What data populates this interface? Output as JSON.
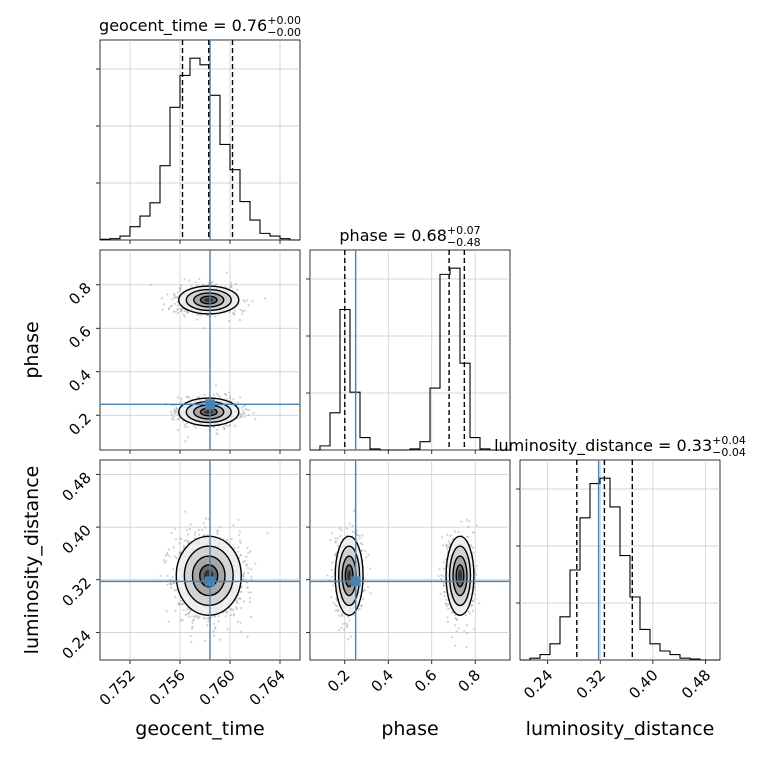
{
  "chart_data": {
    "type": "corner",
    "parameters": [
      {
        "name": "geocent_time",
        "axis_label": "geocent_time",
        "truth": 0.7584,
        "range": [
          0.7496,
          0.7656
        ],
        "ticks": [
          0.752,
          0.756,
          0.76,
          0.764
        ],
        "tick_labels": [
          "0.752",
          "0.756",
          "0.760",
          "0.764"
        ],
        "title": {
          "prefix": "geocent_time = 0.76",
          "upper": "+0.00",
          "lower": "−0.00"
        },
        "quantiles": [
          0.7562,
          0.7583,
          0.7602
        ],
        "hist": {
          "edges_start": 0.7496,
          "bin_width": 0.0008,
          "counts": [
            0.5,
            1,
            3,
            10,
            18,
            28,
            56,
            100,
            124,
            137,
            132,
            109,
            72,
            53,
            29,
            15,
            5,
            3,
            1,
            0
          ]
        }
      },
      {
        "name": "phase",
        "axis_label": "phase",
        "truth": 0.25,
        "range": [
          0.04,
          0.96
        ],
        "ticks": [
          0.2,
          0.4,
          0.6,
          0.8
        ],
        "tick_labels": [
          "0.2",
          "0.4",
          "0.6",
          "0.8"
        ],
        "title": {
          "prefix": "phase = 0.68",
          "upper": "+0.07",
          "lower": "−0.48"
        },
        "quantiles": [
          0.2,
          0.68,
          0.75
        ],
        "hist": {
          "edges_start": 0.04,
          "bin_width": 0.046,
          "counts": [
            0,
            2,
            18,
            68,
            28,
            6,
            0.5,
            0,
            0,
            0,
            0.5,
            4,
            30,
            85,
            88,
            42,
            6,
            0.5,
            0,
            0
          ]
        }
      },
      {
        "name": "luminosity_distance",
        "axis_label": "luminosity_distance",
        "truth": 0.3175,
        "range": [
          0.198,
          0.502
        ],
        "ticks": [
          0.24,
          0.32,
          0.4,
          0.48
        ],
        "tick_labels": [
          "0.24",
          "0.32",
          "0.40",
          "0.48"
        ],
        "title": {
          "prefix": "luminosity_distance = 0.33",
          "upper": "+0.04",
          "lower": "−0.04"
        },
        "quantiles": [
          0.2843,
          0.3263,
          0.3687
        ],
        "hist": {
          "edges_start": 0.198,
          "bin_width": 0.0152,
          "counts": [
            0,
            1,
            3,
            9,
            24,
            50,
            79,
            98,
            101,
            85,
            58,
            35,
            17,
            9,
            5,
            3,
            1,
            0.5,
            0,
            0
          ]
        }
      }
    ],
    "truth_color": "#4682b4",
    "contour_color": "#000000",
    "grid": true,
    "title": "",
    "xlabel_bottom": [
      "geocent_time",
      "phase",
      "luminosity_distance"
    ],
    "ylabel_left": [
      "phase",
      "luminosity_distance"
    ]
  }
}
